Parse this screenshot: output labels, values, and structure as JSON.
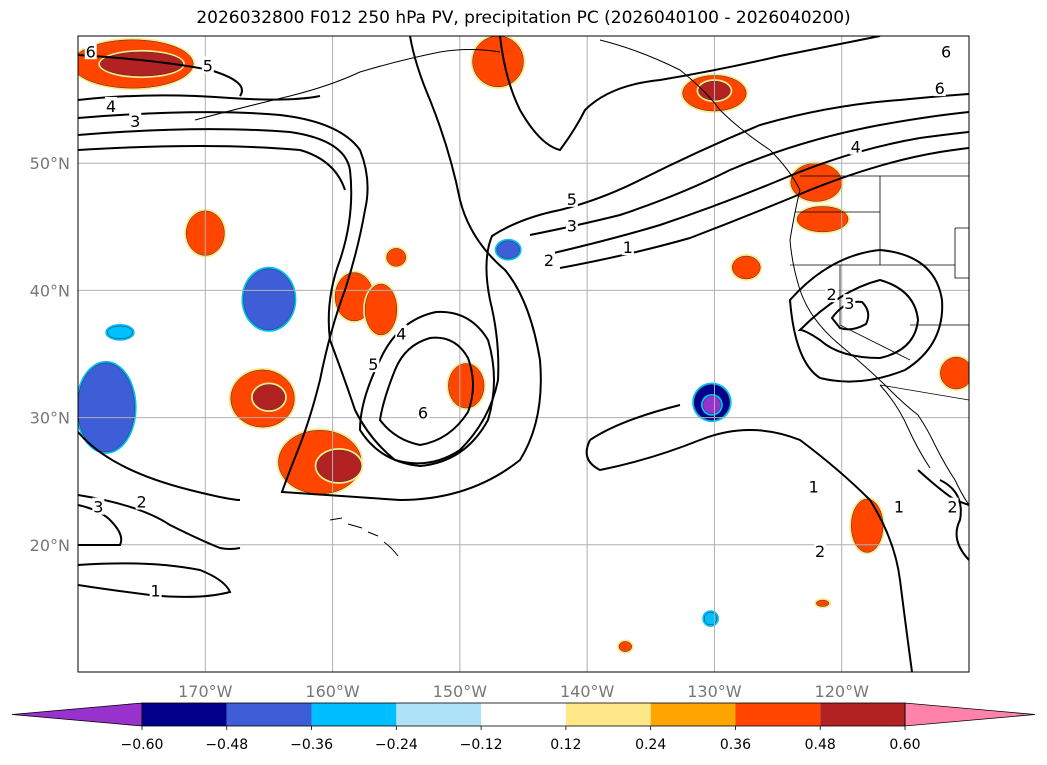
{
  "chart_data": {
    "type": "contour-map",
    "title": "2026032800 F012 250 hPa PV, precipitation PC (2026040100 - 2026040200)",
    "lon_range": [
      -180,
      -110
    ],
    "lat_range": [
      10,
      60
    ],
    "x_ticks": [
      {
        "value": -170,
        "label": "170°W"
      },
      {
        "value": -160,
        "label": "160°W"
      },
      {
        "value": -150,
        "label": "150°W"
      },
      {
        "value": -140,
        "label": "140°W"
      },
      {
        "value": -130,
        "label": "130°W"
      },
      {
        "value": -120,
        "label": "120°W"
      }
    ],
    "y_ticks": [
      {
        "value": 20,
        "label": "20°N"
      },
      {
        "value": 30,
        "label": "30°N"
      },
      {
        "value": 40,
        "label": "40°N"
      },
      {
        "value": 50,
        "label": "50°N"
      }
    ],
    "contour_variable": "250 hPa PV",
    "contour_labels": [
      {
        "text": "6",
        "lon": -179.0,
        "lat": 58.8
      },
      {
        "text": "5",
        "lon": -169.8,
        "lat": 57.7
      },
      {
        "text": "4",
        "lon": -177.4,
        "lat": 54.5
      },
      {
        "text": "3",
        "lon": -175.5,
        "lat": 53.3
      },
      {
        "text": "6",
        "lon": -111.8,
        "lat": 58.8
      },
      {
        "text": "6",
        "lon": -112.3,
        "lat": 55.9
      },
      {
        "text": "4",
        "lon": -118.9,
        "lat": 51.3
      },
      {
        "text": "5",
        "lon": -141.2,
        "lat": 47.2
      },
      {
        "text": "3",
        "lon": -141.2,
        "lat": 45.1
      },
      {
        "text": "1",
        "lon": -136.8,
        "lat": 43.4
      },
      {
        "text": "2",
        "lon": -143.0,
        "lat": 42.4
      },
      {
        "text": "4",
        "lon": -154.6,
        "lat": 36.6
      },
      {
        "text": "5",
        "lon": -156.8,
        "lat": 34.2
      },
      {
        "text": "6",
        "lon": -152.9,
        "lat": 30.4
      },
      {
        "text": "2",
        "lon": -120.8,
        "lat": 39.7
      },
      {
        "text": "3",
        "lon": -119.4,
        "lat": 39.0
      },
      {
        "text": "3",
        "lon": -178.4,
        "lat": 23.0
      },
      {
        "text": "2",
        "lon": -175.0,
        "lat": 23.4
      },
      {
        "text": "1",
        "lon": -173.9,
        "lat": 16.4
      },
      {
        "text": "1",
        "lon": -122.2,
        "lat": 24.6
      },
      {
        "text": "1",
        "lon": -115.5,
        "lat": 23.0
      },
      {
        "text": "2",
        "lon": -111.3,
        "lat": 23.0
      },
      {
        "text": "2",
        "lon": -121.7,
        "lat": 19.5
      }
    ],
    "shaded_variable": "precipitation PC",
    "shaded_regions": [
      {
        "level": 0.36,
        "center": [
          -175.7,
          57.8
        ],
        "size": [
          9.5,
          3.8
        ]
      },
      {
        "level": 0.48,
        "center": [
          -175.0,
          57.8
        ],
        "size": [
          6.5,
          1.9
        ]
      },
      {
        "level": 0.36,
        "center": [
          -147.0,
          58.0
        ],
        "size": [
          4.0,
          4.0
        ]
      },
      {
        "level": 0.36,
        "center": [
          -122.0,
          48.5
        ],
        "size": [
          4.0,
          3.0
        ]
      },
      {
        "level": 0.36,
        "center": [
          -130.0,
          55.5
        ],
        "size": [
          5.0,
          2.8
        ]
      },
      {
        "level": 0.48,
        "center": [
          -130.0,
          55.7
        ],
        "size": [
          2.5,
          1.5
        ]
      },
      {
        "level": 0.36,
        "center": [
          -121.5,
          45.6
        ],
        "size": [
          4.0,
          2.0
        ]
      },
      {
        "level": 0.36,
        "center": [
          -127.5,
          41.8
        ],
        "size": [
          2.2,
          1.8
        ]
      },
      {
        "level": 0.36,
        "center": [
          -158.3,
          39.5
        ],
        "size": [
          3.0,
          3.8
        ]
      },
      {
        "level": 0.36,
        "center": [
          -165.5,
          31.5
        ],
        "size": [
          5.0,
          4.5
        ]
      },
      {
        "level": 0.48,
        "center": [
          -165.0,
          31.6
        ],
        "size": [
          2.5,
          2.0
        ]
      },
      {
        "level": 0.36,
        "center": [
          -161.0,
          26.5
        ],
        "size": [
          6.5,
          5.0
        ]
      },
      {
        "level": 0.48,
        "center": [
          -159.5,
          26.2
        ],
        "size": [
          3.5,
          2.5
        ]
      },
      {
        "level": 0.36,
        "center": [
          -149.5,
          32.5
        ],
        "size": [
          2.8,
          3.5
        ]
      },
      {
        "level": 0.36,
        "center": [
          -156.2,
          38.5
        ],
        "size": [
          2.5,
          4.0
        ]
      },
      {
        "level": 0.36,
        "center": [
          -155.0,
          42.6
        ],
        "size": [
          1.5,
          1.4
        ]
      },
      {
        "level": 0.36,
        "center": [
          -170.0,
          44.5
        ],
        "size": [
          3.0,
          3.5
        ]
      },
      {
        "level": 0.36,
        "center": [
          -118.0,
          21.5
        ],
        "size": [
          2.5,
          4.2
        ]
      },
      {
        "level": 0.36,
        "center": [
          -111.0,
          33.5
        ],
        "size": [
          2.5,
          2.5
        ]
      },
      {
        "level": 0.36,
        "center": [
          -137.0,
          12.0
        ],
        "size": [
          1.0,
          0.8
        ]
      },
      {
        "level": 0.36,
        "center": [
          -121.5,
          15.4
        ],
        "size": [
          1.0,
          0.5
        ]
      },
      {
        "level": -0.36,
        "center": [
          -165.0,
          39.3
        ],
        "size": [
          4.0,
          4.8
        ]
      },
      {
        "level": -0.36,
        "center": [
          -177.8,
          30.8
        ],
        "size": [
          4.5,
          7.0
        ]
      },
      {
        "level": -0.36,
        "center": [
          -146.2,
          43.2
        ],
        "size": [
          1.8,
          1.4
        ]
      },
      {
        "level": -0.48,
        "center": [
          -130.2,
          31.2
        ],
        "size": [
          2.8,
          2.8
        ]
      },
      {
        "level": -0.6,
        "center": [
          -130.2,
          31.0
        ],
        "size": [
          1.4,
          1.4
        ]
      },
      {
        "level": -0.24,
        "center": [
          -176.7,
          36.7
        ],
        "size": [
          2.0,
          1.0
        ]
      },
      {
        "level": -0.24,
        "center": [
          -130.3,
          14.2
        ],
        "size": [
          1.0,
          1.0
        ]
      }
    ],
    "colorbar": {
      "levels": [
        -0.6,
        -0.48,
        -0.36,
        -0.24,
        -0.12,
        0.12,
        0.24,
        0.36,
        0.48,
        0.6
      ],
      "tick_labels": [
        "−0.60",
        "−0.48",
        "−0.36",
        "−0.24",
        "−0.12",
        "0.12",
        "0.24",
        "0.36",
        "0.48",
        "0.60"
      ],
      "colors": [
        "#9932cc",
        "#00008b",
        "#3d5ed6",
        "#00bfff",
        "#aee3f8",
        "#ffffff",
        "#ffe88a",
        "#ffa500",
        "#ff4500",
        "#b22222",
        "#ff82ab"
      ],
      "extend": "both"
    }
  }
}
